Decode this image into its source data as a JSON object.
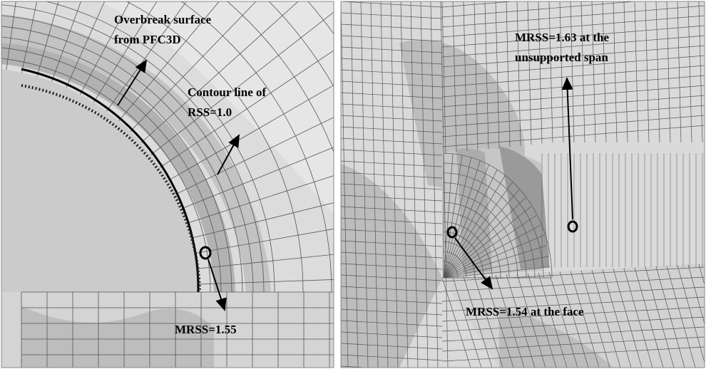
{
  "panels": [
    {
      "annotations": [
        {
          "lines": [
            "Overbreak surface",
            "from PFC3D"
          ]
        },
        {
          "lines": [
            "Contour line of",
            "RSS=1.0"
          ]
        },
        {
          "lines": [
            "MRSS=1.55"
          ]
        }
      ]
    },
    {
      "annotations": [
        {
          "lines": [
            "MRSS=1.63 at the",
            "unsupported span"
          ]
        },
        {
          "lines": [
            "MRSS=1.54 at the face"
          ]
        }
      ]
    }
  ]
}
